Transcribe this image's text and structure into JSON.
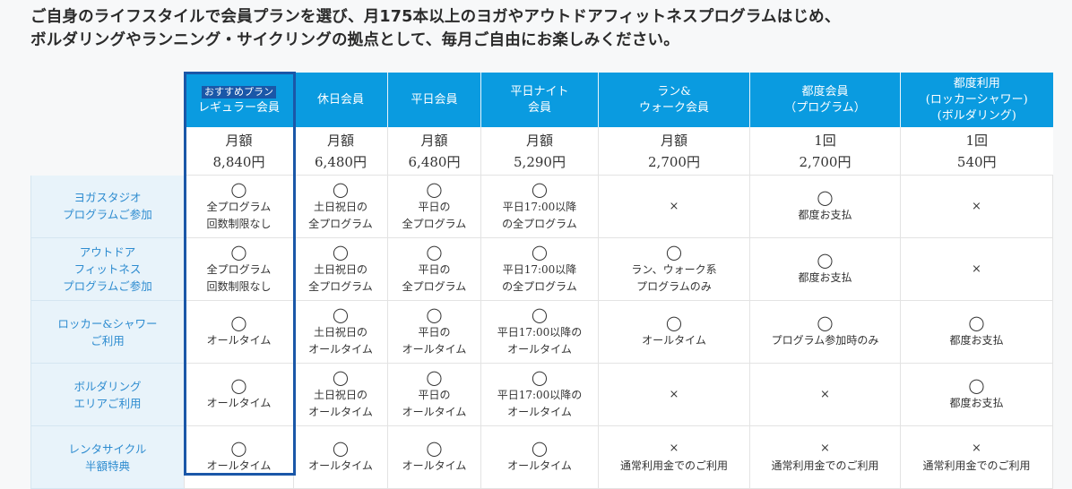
{
  "intro": {
    "line1": "ご自身のライフスタイルで会員プランを選び、月175本以上のヨガやアウトドアフィットネスプログラムはじめ、",
    "line2": "ボルダリングやランニング・サイクリングの拠点として、毎月ご自由にお楽しみください。"
  },
  "plans": [
    {
      "badge": "おすすめプラン",
      "name_lines": [
        "レギュラー会員"
      ],
      "price_label": "月額",
      "price": "8,840円",
      "featured": true
    },
    {
      "badge": "",
      "name_lines": [
        "休日会員"
      ],
      "price_label": "月額",
      "price": "6,480円",
      "featured": false
    },
    {
      "badge": "",
      "name_lines": [
        "平日会員"
      ],
      "price_label": "月額",
      "price": "6,480円",
      "featured": false
    },
    {
      "badge": "",
      "name_lines": [
        "平日ナイト",
        "会員"
      ],
      "price_label": "月額",
      "price": "5,290円",
      "featured": false
    },
    {
      "badge": "",
      "name_lines": [
        "ラン&",
        "ウォーク会員"
      ],
      "price_label": "月額",
      "price": "2,700円",
      "featured": false
    },
    {
      "badge": "",
      "name_lines": [
        "都度会員",
        "（プログラム）"
      ],
      "price_label": "1回",
      "price": "2,700円",
      "featured": false
    },
    {
      "badge": "",
      "name_lines": [
        "都度利用",
        "(ロッカーシャワー)",
        "(ボルダリング)"
      ],
      "price_label": "1回",
      "price": "540円",
      "featured": false
    }
  ],
  "rows": [
    {
      "label_lines": [
        "ヨガスタジオ",
        "プログラムご参加"
      ],
      "cells": [
        {
          "mark": "◯",
          "lines": [
            "全プログラム",
            "回数制限なし"
          ]
        },
        {
          "mark": "◯",
          "lines": [
            "土日祝日の",
            "全プログラム"
          ]
        },
        {
          "mark": "◯",
          "lines": [
            "平日の",
            "全プログラム"
          ]
        },
        {
          "mark": "◯",
          "lines": [
            "平日17:00以降",
            "の全プログラム"
          ]
        },
        {
          "mark": "×",
          "lines": []
        },
        {
          "mark": "◯",
          "lines": [
            "都度お支払"
          ]
        },
        {
          "mark": "×",
          "lines": []
        }
      ]
    },
    {
      "label_lines": [
        "アウトドア",
        "フィットネス",
        "プログラムご参加"
      ],
      "cells": [
        {
          "mark": "◯",
          "lines": [
            "全プログラム",
            "回数制限なし"
          ]
        },
        {
          "mark": "◯",
          "lines": [
            "土日祝日の",
            "全プログラム"
          ]
        },
        {
          "mark": "◯",
          "lines": [
            "平日の",
            "全プログラム"
          ]
        },
        {
          "mark": "◯",
          "lines": [
            "平日17:00以降",
            "の全プログラム"
          ]
        },
        {
          "mark": "◯",
          "lines": [
            "ラン、ウォーク系",
            "プログラムのみ"
          ]
        },
        {
          "mark": "◯",
          "lines": [
            "都度お支払"
          ]
        },
        {
          "mark": "×",
          "lines": []
        }
      ]
    },
    {
      "label_lines": [
        "ロッカー&シャワー",
        "ご利用"
      ],
      "cells": [
        {
          "mark": "◯",
          "lines": [
            "オールタイム"
          ]
        },
        {
          "mark": "◯",
          "lines": [
            "土日祝日の",
            "オールタイム"
          ]
        },
        {
          "mark": "◯",
          "lines": [
            "平日の",
            "オールタイム"
          ]
        },
        {
          "mark": "◯",
          "lines": [
            "平日17:00以降の",
            "オールタイム"
          ]
        },
        {
          "mark": "◯",
          "lines": [
            "オールタイム"
          ]
        },
        {
          "mark": "◯",
          "lines": [
            "プログラム参加時のみ"
          ]
        },
        {
          "mark": "◯",
          "lines": [
            "都度お支払"
          ]
        }
      ]
    },
    {
      "label_lines": [
        "ボルダリング",
        "エリアご利用"
      ],
      "cells": [
        {
          "mark": "◯",
          "lines": [
            "オールタイム"
          ]
        },
        {
          "mark": "◯",
          "lines": [
            "土日祝日の",
            "オールタイム"
          ]
        },
        {
          "mark": "◯",
          "lines": [
            "平日の",
            "オールタイム"
          ]
        },
        {
          "mark": "◯",
          "lines": [
            "平日17:00以降の",
            "オールタイム"
          ]
        },
        {
          "mark": "×",
          "lines": []
        },
        {
          "mark": "×",
          "lines": []
        },
        {
          "mark": "◯",
          "lines": [
            "都度お支払"
          ]
        }
      ]
    },
    {
      "label_lines": [
        "レンタサイクル",
        "半額特典"
      ],
      "cells": [
        {
          "mark": "◯",
          "lines": [
            "オールタイム"
          ]
        },
        {
          "mark": "◯",
          "lines": [
            "オールタイム"
          ]
        },
        {
          "mark": "◯",
          "lines": [
            "オールタイム"
          ]
        },
        {
          "mark": "◯",
          "lines": [
            "オールタイム"
          ]
        },
        {
          "mark": "×",
          "lines": [
            "通常利用金でのご利用"
          ]
        },
        {
          "mark": "×",
          "lines": [
            "通常利用金でのご利用"
          ]
        },
        {
          "mark": "×",
          "lines": [
            "通常利用金でのご利用"
          ]
        }
      ]
    }
  ],
  "colors": {
    "header_bg": "#0a9be0",
    "featured_border": "#1a57a8",
    "rowhead_bg": "#e8f3fa",
    "rowhead_text": "#2e8cd0"
  }
}
